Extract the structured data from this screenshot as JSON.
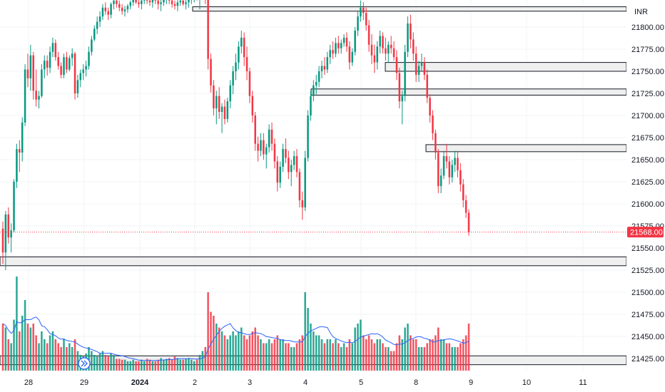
{
  "chart_data": {
    "type": "candlestick",
    "currency_label": "INR",
    "last_price_label": "21568.00",
    "y_ticks": [
      "21800.00",
      "21775.00",
      "21750.00",
      "21725.00",
      "21700.00",
      "21675.00",
      "21650.00",
      "21625.00",
      "21600.00",
      "21575.00",
      "21550.00",
      "21525.00",
      "21500.00",
      "21475.00",
      "21450.00",
      "21425.00"
    ],
    "x_ticks": [
      {
        "label": "28",
        "bold": false
      },
      {
        "label": "29",
        "bold": false
      },
      {
        "label": "2024",
        "bold": true
      },
      {
        "label": "2",
        "bold": false
      },
      {
        "label": "3",
        "bold": false
      },
      {
        "label": "4",
        "bold": false
      },
      {
        "label": "5",
        "bold": false
      },
      {
        "label": "8",
        "bold": false
      },
      {
        "label": "9",
        "bold": false
      },
      {
        "label": "10",
        "bold": false
      },
      {
        "label": "11",
        "bold": false
      }
    ],
    "zones": [
      {
        "type": "supply",
        "low": 21818,
        "high": 21823
      },
      {
        "type": "supply",
        "low": 21750,
        "high": 21760
      },
      {
        "type": "supply",
        "low": 21723,
        "high": 21730
      },
      {
        "type": "supply",
        "low": 21659,
        "high": 21667
      },
      {
        "type": "demand",
        "low": 21530,
        "high": 21540
      },
      {
        "type": "volume-band",
        "low": 21418,
        "high": 21428
      }
    ],
    "colors": {
      "up": "#089981",
      "down": "#f23645",
      "ma": "#2962ff",
      "zone_fill": "#efefef",
      "zone_border": "#131722",
      "last_price_bg": "#f23645"
    },
    "candles": [
      [
        21572,
        21580,
        21532,
        21545,
        60
      ],
      [
        21545,
        21592,
        21525,
        21588,
        55
      ],
      [
        21588,
        21596,
        21555,
        21562,
        40
      ],
      [
        21562,
        21578,
        21545,
        21570,
        35
      ],
      [
        21570,
        21628,
        21568,
        21625,
        65
      ],
      [
        21625,
        21668,
        21618,
        21662,
        120
      ],
      [
        21662,
        21672,
        21636,
        21658,
        50
      ],
      [
        21658,
        21698,
        21648,
        21692,
        70
      ],
      [
        21692,
        21758,
        21688,
        21752,
        90
      ],
      [
        21752,
        21770,
        21732,
        21742,
        60
      ],
      [
        21742,
        21780,
        21728,
        21768,
        55
      ],
      [
        21768,
        21772,
        21718,
        21728,
        60
      ],
      [
        21728,
        21752,
        21710,
        21718,
        45
      ],
      [
        21718,
        21728,
        21708,
        21722,
        35
      ],
      [
        21722,
        21758,
        21720,
        21752,
        50
      ],
      [
        21752,
        21768,
        21742,
        21762,
        40
      ],
      [
        21762,
        21768,
        21745,
        21754,
        35
      ],
      [
        21754,
        21778,
        21748,
        21772,
        45
      ],
      [
        21772,
        21788,
        21766,
        21782,
        50
      ],
      [
        21782,
        21786,
        21762,
        21766,
        40
      ],
      [
        21766,
        21772,
        21752,
        21756,
        35
      ],
      [
        21756,
        21760,
        21742,
        21746,
        30
      ],
      [
        21746,
        21770,
        21742,
        21766,
        40
      ],
      [
        21766,
        21772,
        21748,
        21752,
        30
      ],
      [
        21752,
        21768,
        21750,
        21765,
        35
      ],
      [
        21765,
        21776,
        21756,
        21770,
        30
      ],
      [
        21770,
        21772,
        21718,
        21725,
        40
      ],
      [
        21725,
        21746,
        21720,
        21740,
        25
      ],
      [
        21740,
        21752,
        21732,
        21748,
        20
      ],
      [
        21748,
        21758,
        21740,
        21752,
        18
      ],
      [
        21752,
        21762,
        21744,
        21756,
        22
      ],
      [
        21756,
        21778,
        21752,
        21772,
        30
      ],
      [
        21772,
        21790,
        21768,
        21786,
        25
      ],
      [
        21786,
        21802,
        21784,
        21798,
        20
      ],
      [
        21798,
        21812,
        21792,
        21806,
        18
      ],
      [
        21806,
        21818,
        21800,
        21812,
        22
      ],
      [
        21812,
        21826,
        21808,
        21822,
        25
      ],
      [
        21822,
        21828,
        21814,
        21818,
        20
      ],
      [
        21818,
        21822,
        21808,
        21814,
        18
      ],
      [
        21814,
        21828,
        21810,
        21826,
        22
      ],
      [
        21826,
        21834,
        21820,
        21830,
        20
      ],
      [
        21830,
        21836,
        21822,
        21826,
        15
      ],
      [
        21826,
        21830,
        21818,
        21822,
        15
      ],
      [
        21822,
        21826,
        21814,
        21818,
        14
      ],
      [
        21818,
        21824,
        21812,
        21820,
        14
      ],
      [
        21820,
        21826,
        21816,
        21824,
        12
      ],
      [
        21824,
        21830,
        21820,
        21828,
        12
      ],
      [
        21828,
        21836,
        21824,
        21832,
        14
      ],
      [
        21832,
        21838,
        21826,
        21828,
        12
      ],
      [
        21828,
        21832,
        21822,
        21826,
        12
      ],
      [
        21826,
        21832,
        21820,
        21830,
        14
      ],
      [
        21830,
        21836,
        21826,
        21834,
        12
      ],
      [
        21834,
        21840,
        21826,
        21830,
        15
      ],
      [
        21830,
        21836,
        21824,
        21828,
        14
      ],
      [
        21828,
        21834,
        21822,
        21832,
        12
      ],
      [
        21832,
        21838,
        21826,
        21830,
        12
      ],
      [
        21830,
        21834,
        21820,
        21826,
        14
      ],
      [
        21826,
        21832,
        21818,
        21828,
        16
      ],
      [
        21828,
        21836,
        21824,
        21832,
        14
      ],
      [
        21832,
        21840,
        21826,
        21836,
        15
      ],
      [
        21836,
        21842,
        21826,
        21830,
        16
      ],
      [
        21830,
        21836,
        21822,
        21826,
        14
      ],
      [
        21826,
        21830,
        21820,
        21824,
        18
      ],
      [
        21824,
        21832,
        21818,
        21828,
        16
      ],
      [
        21828,
        21834,
        21824,
        21830,
        14
      ],
      [
        21830,
        21836,
        21824,
        21826,
        14
      ],
      [
        21826,
        21832,
        21820,
        21828,
        15
      ],
      [
        21828,
        21836,
        21822,
        21832,
        16
      ],
      [
        21832,
        21838,
        21826,
        21834,
        14
      ],
      [
        21834,
        21840,
        21828,
        21836,
        12
      ],
      [
        21836,
        21842,
        21830,
        21832,
        14
      ],
      [
        21832,
        21846,
        21820,
        21840,
        20
      ],
      [
        21840,
        21852,
        21836,
        21846,
        25
      ],
      [
        21846,
        21850,
        21826,
        21832,
        30
      ],
      [
        21832,
        21840,
        21752,
        21764,
        100
      ],
      [
        21764,
        21770,
        21726,
        21734,
        75
      ],
      [
        21734,
        21740,
        21700,
        21708,
        70
      ],
      [
        21708,
        21728,
        21690,
        21722,
        60
      ],
      [
        21722,
        21732,
        21696,
        21704,
        55
      ],
      [
        21704,
        21714,
        21680,
        21710,
        50
      ],
      [
        21710,
        21718,
        21690,
        21696,
        45
      ],
      [
        21696,
        21720,
        21692,
        21716,
        40
      ],
      [
        21716,
        21740,
        21708,
        21734,
        45
      ],
      [
        21734,
        21756,
        21724,
        21750,
        50
      ],
      [
        21750,
        21770,
        21740,
        21760,
        45
      ],
      [
        21760,
        21784,
        21752,
        21778,
        50
      ],
      [
        21778,
        21796,
        21770,
        21788,
        55
      ],
      [
        21788,
        21794,
        21756,
        21766,
        45
      ],
      [
        21766,
        21778,
        21740,
        21750,
        40
      ],
      [
        21750,
        21754,
        21714,
        21722,
        45
      ],
      [
        21722,
        21728,
        21692,
        21700,
        50
      ],
      [
        21700,
        21704,
        21660,
        21668,
        55
      ],
      [
        21668,
        21676,
        21648,
        21660,
        45
      ],
      [
        21660,
        21680,
        21654,
        21672,
        40
      ],
      [
        21672,
        21680,
        21650,
        21656,
        35
      ],
      [
        21656,
        21668,
        21640,
        21664,
        35
      ],
      [
        21664,
        21690,
        21658,
        21684,
        40
      ],
      [
        21684,
        21692,
        21660,
        21668,
        35
      ],
      [
        21668,
        21674,
        21640,
        21648,
        40
      ],
      [
        21648,
        21654,
        21614,
        21624,
        45
      ],
      [
        21624,
        21648,
        21618,
        21642,
        40
      ],
      [
        21642,
        21668,
        21636,
        21662,
        40
      ],
      [
        21662,
        21674,
        21646,
        21652,
        35
      ],
      [
        21652,
        21660,
        21628,
        21636,
        35
      ],
      [
        21636,
        21650,
        21620,
        21644,
        30
      ],
      [
        21644,
        21660,
        21638,
        21654,
        30
      ],
      [
        21654,
        21662,
        21630,
        21636,
        35
      ],
      [
        21636,
        21640,
        21596,
        21604,
        40
      ],
      [
        21604,
        21614,
        21582,
        21596,
        45
      ],
      [
        21596,
        21660,
        21592,
        21652,
        100
      ],
      [
        21652,
        21706,
        21648,
        21700,
        80
      ],
      [
        21700,
        21728,
        21694,
        21722,
        60
      ],
      [
        21722,
        21740,
        21716,
        21734,
        50
      ],
      [
        21734,
        21746,
        21724,
        21738,
        45
      ],
      [
        21738,
        21756,
        21732,
        21750,
        45
      ],
      [
        21750,
        21762,
        21742,
        21756,
        40
      ],
      [
        21756,
        21766,
        21746,
        21752,
        35
      ],
      [
        21752,
        21772,
        21748,
        21766,
        40
      ],
      [
        21766,
        21780,
        21758,
        21774,
        40
      ],
      [
        21774,
        21784,
        21764,
        21770,
        35
      ],
      [
        21770,
        21788,
        21766,
        21782,
        40
      ],
      [
        21782,
        21790,
        21770,
        21776,
        35
      ],
      [
        21776,
        21786,
        21770,
        21782,
        30
      ],
      [
        21782,
        21792,
        21778,
        21788,
        35
      ],
      [
        21788,
        21794,
        21772,
        21778,
        30
      ],
      [
        21778,
        21784,
        21752,
        21760,
        40
      ],
      [
        21760,
        21776,
        21756,
        21772,
        35
      ],
      [
        21772,
        21800,
        21768,
        21796,
        55
      ],
      [
        21796,
        21818,
        21790,
        21812,
        60
      ],
      [
        21812,
        21830,
        21806,
        21822,
        65
      ],
      [
        21822,
        21828,
        21808,
        21816,
        45
      ],
      [
        21816,
        21822,
        21796,
        21802,
        40
      ],
      [
        21802,
        21808,
        21772,
        21780,
        45
      ],
      [
        21780,
        21792,
        21758,
        21768,
        40
      ],
      [
        21768,
        21780,
        21748,
        21760,
        35
      ],
      [
        21760,
        21784,
        21752,
        21778,
        40
      ],
      [
        21778,
        21796,
        21770,
        21790,
        40
      ],
      [
        21790,
        21794,
        21770,
        21776,
        35
      ],
      [
        21776,
        21788,
        21762,
        21770,
        30
      ],
      [
        21770,
        21784,
        21760,
        21780,
        30
      ],
      [
        21780,
        21790,
        21770,
        21776,
        25
      ],
      [
        21776,
        21784,
        21762,
        21766,
        25
      ],
      [
        21766,
        21774,
        21740,
        21748,
        35
      ],
      [
        21748,
        21754,
        21708,
        21716,
        45
      ],
      [
        21716,
        21728,
        21690,
        21722,
        40
      ],
      [
        21722,
        21780,
        21716,
        21772,
        55
      ],
      [
        21772,
        21812,
        21766,
        21804,
        60
      ],
      [
        21804,
        21814,
        21776,
        21786,
        45
      ],
      [
        21786,
        21794,
        21762,
        21770,
        40
      ],
      [
        21770,
        21778,
        21738,
        21746,
        40
      ],
      [
        21746,
        21762,
        21738,
        21756,
        30
      ],
      [
        21756,
        21770,
        21750,
        21760,
        30
      ],
      [
        21760,
        21766,
        21740,
        21746,
        30
      ],
      [
        21746,
        21752,
        21714,
        21720,
        35
      ],
      [
        21720,
        21724,
        21692,
        21700,
        40
      ],
      [
        21700,
        21706,
        21672,
        21680,
        40
      ],
      [
        21680,
        21684,
        21650,
        21658,
        45
      ],
      [
        21658,
        21662,
        21612,
        21620,
        55
      ],
      [
        21620,
        21640,
        21612,
        21632,
        40
      ],
      [
        21632,
        21660,
        21628,
        21654,
        40
      ],
      [
        21654,
        21668,
        21640,
        21648,
        35
      ],
      [
        21648,
        21654,
        21622,
        21630,
        35
      ],
      [
        21630,
        21650,
        21624,
        21644,
        30
      ],
      [
        21644,
        21660,
        21636,
        21652,
        30
      ],
      [
        21652,
        21660,
        21630,
        21638,
        30
      ],
      [
        21638,
        21646,
        21614,
        21622,
        35
      ],
      [
        21622,
        21628,
        21596,
        21604,
        40
      ],
      [
        21604,
        21610,
        21584,
        21590,
        45
      ],
      [
        21590,
        21594,
        21564,
        21568,
        60
      ]
    ]
  }
}
